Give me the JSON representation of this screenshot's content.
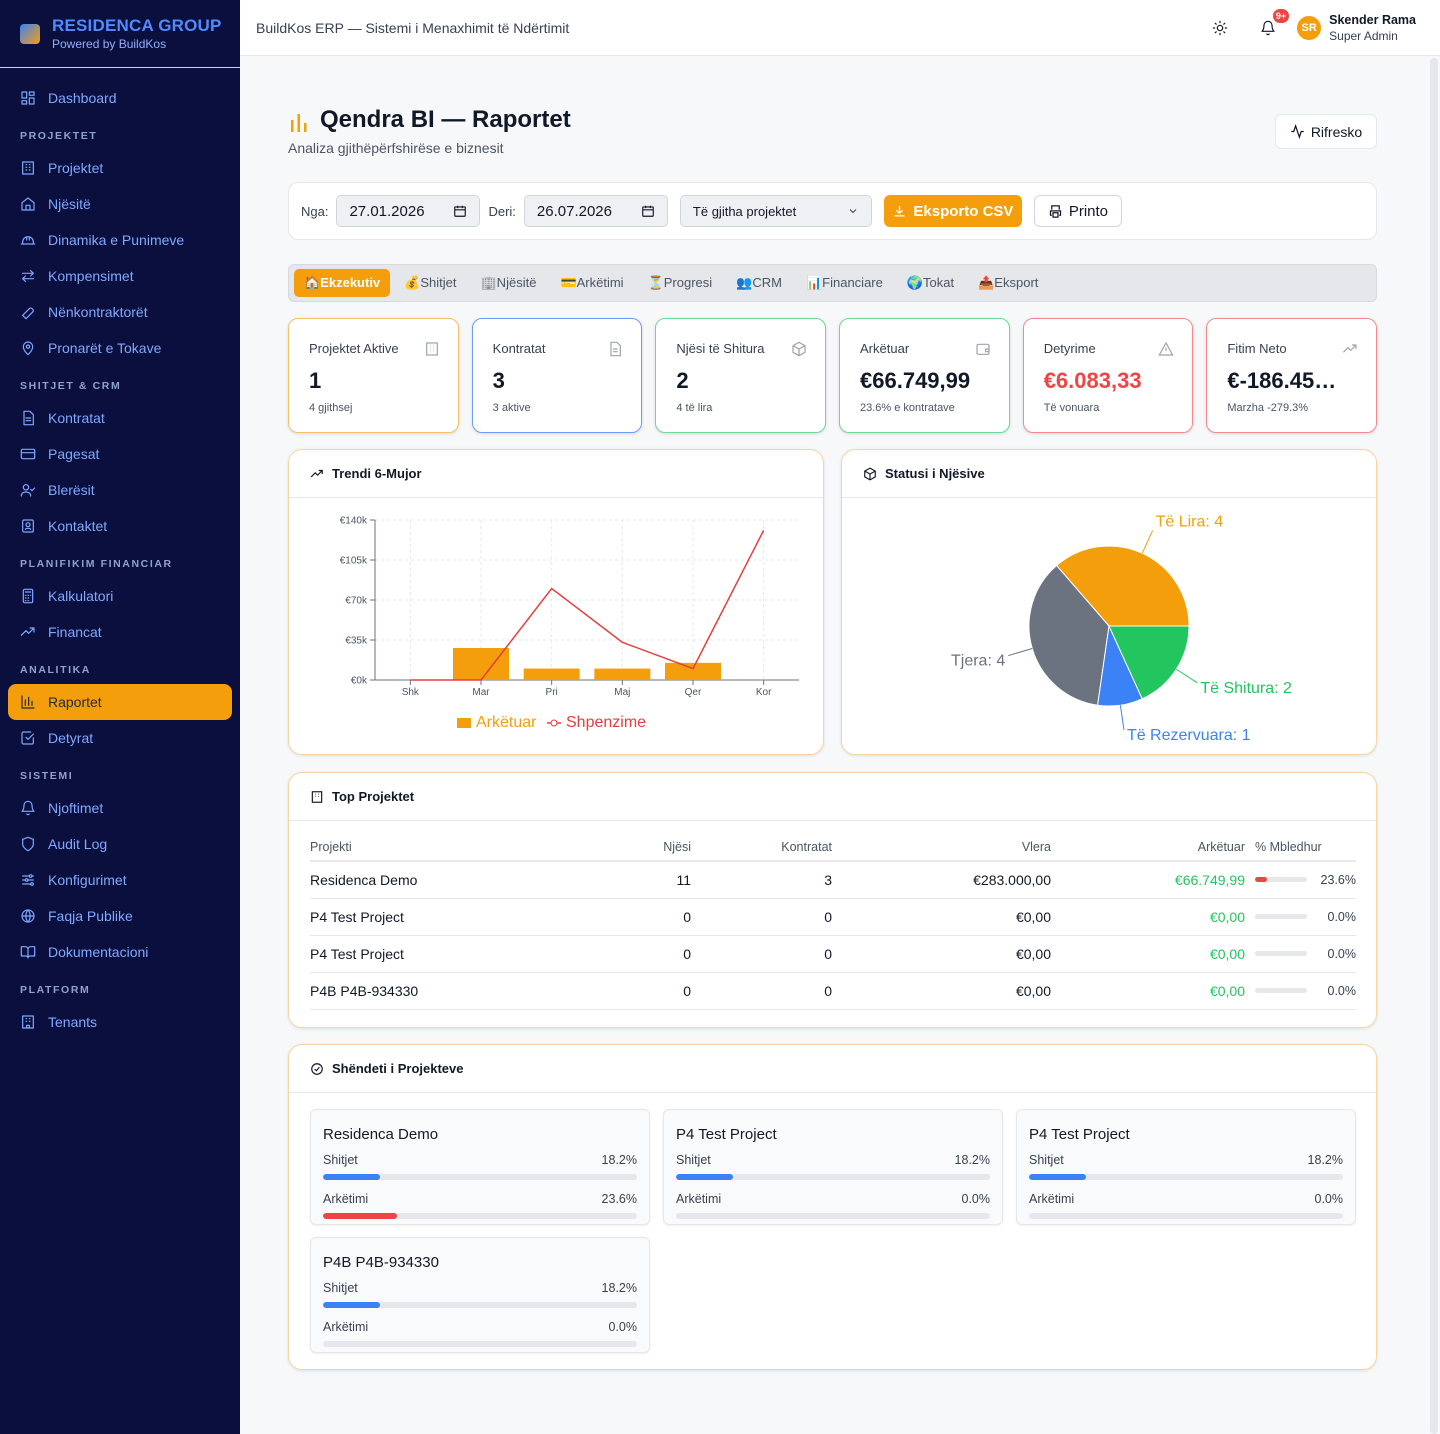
{
  "brand": {
    "title": "RESIDENCA GROUP",
    "subtitle": "Powered by BuildKos"
  },
  "app_title": "BuildKos ERP — Sistemi i Menaxhimit të Ndërtimit",
  "user": {
    "initials": "SR",
    "name": "Skender Rama",
    "role": "Super Admin",
    "notifications": "9+"
  },
  "nav": {
    "dashboard": "Dashboard",
    "sections": {
      "projektet": "PROJEKTET",
      "shitjet": "SHITJET & CRM",
      "planifikim": "PLANIFIKIM FINANCIAR",
      "analitika": "ANALITIKA",
      "sistemi": "SISTEMI",
      "platform": "PLATFORM"
    },
    "items": {
      "projektet": "Projektet",
      "njesite": "Njësitë",
      "dinamika": "Dinamika e Punimeve",
      "kompensimet": "Kompensimet",
      "nenkontraktoret": "Nënkontraktorët",
      "pronaret": "Pronarët e Tokave",
      "kontratat": "Kontratat",
      "pagesat": "Pagesat",
      "bleresit": "Blerësit",
      "kontaktet": "Kontaktet",
      "kalkulatori": "Kalkulatori",
      "financat": "Financat",
      "raportet": "Raportet",
      "detyrat": "Detyrat",
      "njoftimet": "Njoftimet",
      "audit": "Audit Log",
      "konfigurimet": "Konfigurimet",
      "faqja": "Faqja Publike",
      "dokumentacioni": "Dokumentacioni",
      "tenants": "Tenants"
    }
  },
  "page": {
    "title": "Qendra BI — Raportet",
    "subtitle": "Analiza gjithëpërfshirëse e biznesit",
    "refresh": "Rifresko"
  },
  "filters": {
    "from_label": "Nga:",
    "from": "27.01.2026",
    "to_label": "Deri:",
    "to": "26.07.2026",
    "project": "Të gjitha projektet",
    "export": "Eksporto CSV",
    "print": "Printo"
  },
  "tabs": [
    "🏠Ekzekutiv",
    "💰Shitjet",
    "🏢Njësitë",
    "💳Arkëtimi",
    "⏳Progresi",
    "👥CRM",
    "📊Financiare",
    "🌍Tokat",
    "📤Eksport"
  ],
  "kpis": [
    {
      "label": "Projektet Aktive",
      "value": "1",
      "sub": "4 gjithsej",
      "icon": "building-icon",
      "border": "#f5c26b"
    },
    {
      "label": "Kontratat",
      "value": "3",
      "sub": "3 aktive",
      "icon": "document-icon",
      "border": "#6b9cf5"
    },
    {
      "label": "Njësi të Shitura",
      "value": "2",
      "sub": "4 të lira",
      "icon": "box-icon",
      "border": "#6bdb8f"
    },
    {
      "label": "Arkëtuar",
      "value": "€66.749,99",
      "sub": "23.6% e kontratave",
      "icon": "wallet-icon",
      "border": "#6bdb8f"
    },
    {
      "label": "Detyrime",
      "value": "€6.083,33",
      "sub": "Të vonuara",
      "icon": "warning-icon",
      "border": "#f58a8a",
      "value_color": "#ef4444"
    },
    {
      "label": "Fitim Neto",
      "value": "€-186.45…",
      "sub": "Marzha -279.3%",
      "icon": "trending-up-icon",
      "border": "#f58a8a"
    }
  ],
  "trend_card": {
    "title": "Trendi 6-Mujor"
  },
  "status_card": {
    "title": "Statusi i Njësive"
  },
  "chart_data": [
    {
      "type": "bar",
      "title": "",
      "categories": [
        "Shk",
        "Mar",
        "Pri",
        "Maj",
        "Qer",
        "Kor"
      ],
      "yticks": [
        "€0k",
        "€35k",
        "€70k",
        "€105k",
        "€140k"
      ],
      "ylim": [
        0,
        140000
      ],
      "grid": true,
      "legend_position": "bottom",
      "series": [
        {
          "name": "Arkëtuar",
          "kind": "bar",
          "color": "#f59e0b",
          "values": [
            0,
            28000,
            10000,
            10000,
            15000,
            0
          ]
        },
        {
          "name": "Shpenzime",
          "kind": "line",
          "color": "#e53e3e",
          "values": [
            0,
            0,
            80000,
            33000,
            10000,
            131000
          ]
        }
      ]
    },
    {
      "type": "pie",
      "title": "",
      "slices": [
        {
          "label": "Të Lira: 4",
          "value": 4,
          "color": "#f59e0b"
        },
        {
          "label": "Tjera: 4",
          "value": 4,
          "color": "#6b7280"
        },
        {
          "label": "Të Rezervuara: 1",
          "value": 1,
          "color": "#3b82f6"
        },
        {
          "label": "Të Shitura: 2",
          "value": 2,
          "color": "#22c55e"
        }
      ]
    }
  ],
  "top_projects": {
    "title": "Top Projektet",
    "headers": [
      "Projekti",
      "Njësi",
      "Kontratat",
      "Vlera",
      "Arkëtuar",
      "% Mbledhur"
    ],
    "rows": [
      {
        "name": "Residenca Demo",
        "units": "11",
        "contracts": "3",
        "value": "€283.000,00",
        "collected": "€66.749,99",
        "pct": "23.6%",
        "pct_num": 23.6
      },
      {
        "name": "P4 Test Project",
        "units": "0",
        "contracts": "0",
        "value": "€0,00",
        "collected": "€0,00",
        "pct": "0.0%",
        "pct_num": 0
      },
      {
        "name": "P4 Test Project",
        "units": "0",
        "contracts": "0",
        "value": "€0,00",
        "collected": "€0,00",
        "pct": "0.0%",
        "pct_num": 0
      },
      {
        "name": "P4B P4B-934330",
        "units": "0",
        "contracts": "0",
        "value": "€0,00",
        "collected": "€0,00",
        "pct": "0.0%",
        "pct_num": 0
      }
    ]
  },
  "health": {
    "title": "Shëndeti i Projekteve",
    "sales_label": "Shitjet",
    "collection_label": "Arkëtimi",
    "cards": [
      {
        "name": "Residenca Demo",
        "sales": "18.2%",
        "sales_num": 18.2,
        "collection": "23.6%",
        "collection_num": 23.6
      },
      {
        "name": "P4 Test Project",
        "sales": "18.2%",
        "sales_num": 18.2,
        "collection": "0.0%",
        "collection_num": 0
      },
      {
        "name": "P4 Test Project",
        "sales": "18.2%",
        "sales_num": 18.2,
        "collection": "0.0%",
        "collection_num": 0
      },
      {
        "name": "P4B P4B-934330",
        "sales": "18.2%",
        "sales_num": 18.2,
        "collection": "0.0%",
        "collection_num": 0
      }
    ]
  }
}
